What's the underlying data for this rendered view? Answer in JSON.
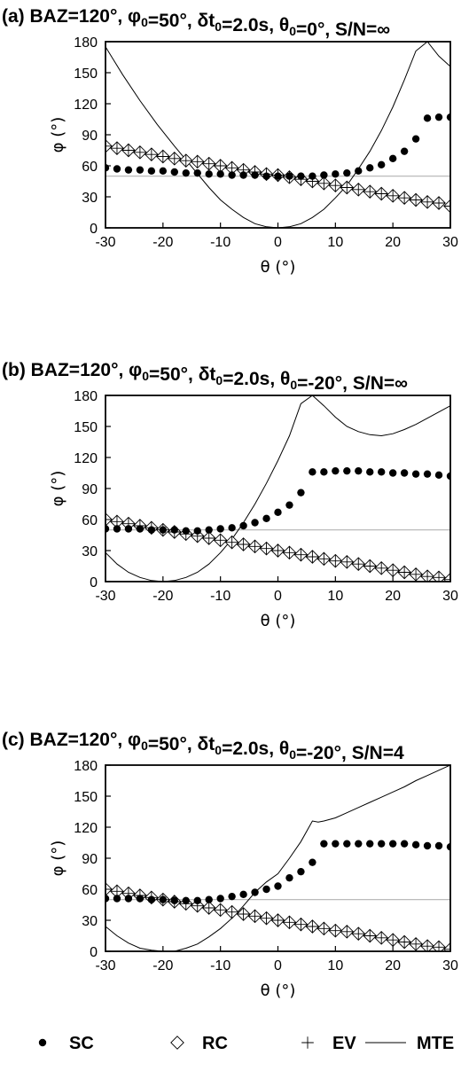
{
  "legend": [
    {
      "key": "SC",
      "label": "SC",
      "marker": "dot"
    },
    {
      "key": "RC",
      "label": "RC",
      "marker": "diamond"
    },
    {
      "key": "EV",
      "label": "EV",
      "marker": "plus"
    },
    {
      "key": "MTE",
      "label": "MTE",
      "marker": "line"
    }
  ],
  "chart_data": [
    {
      "type": "scatter",
      "title": "(a) BAZ=120°, φ0=50°, δt0=2.0s, θ0=0°, S/N=∞",
      "title_parts": [
        {
          "t": "(a) BAZ=120°, φ"
        },
        {
          "t": "0",
          "sub": true
        },
        {
          "t": "=50°, δt"
        },
        {
          "t": "0",
          "sub": true
        },
        {
          "t": "=2.0s, θ"
        },
        {
          "t": "0",
          "sub": true
        },
        {
          "t": "=0°, S/N=∞"
        }
      ],
      "xlabel": "θ (°)",
      "ylabel": "φ (°)",
      "xlim": [
        -30,
        30
      ],
      "ylim": [
        0,
        180
      ],
      "xticks": [
        -30,
        -20,
        -10,
        0,
        10,
        20,
        30
      ],
      "yticks": [
        0,
        30,
        60,
        90,
        120,
        150,
        180
      ],
      "reference_line": 50,
      "x": [
        -30,
        -28,
        -26,
        -24,
        -22,
        -20,
        -18,
        -16,
        -14,
        -12,
        -10,
        -8,
        -6,
        -4,
        -2,
        0,
        2,
        4,
        6,
        8,
        10,
        12,
        14,
        16,
        18,
        20,
        22,
        24,
        26,
        28,
        30
      ],
      "series": [
        {
          "name": "SC",
          "values": [
            58,
            57,
            56,
            56,
            55,
            55,
            54,
            53,
            53,
            52,
            52,
            51,
            51,
            51,
            50,
            50,
            50,
            50,
            50,
            51,
            52,
            53,
            55,
            58,
            61,
            67,
            74,
            86,
            106,
            107,
            107
          ]
        },
        {
          "name": "RC",
          "values": [
            79,
            77,
            75,
            73,
            71,
            69,
            67,
            65,
            64,
            62,
            60,
            58,
            56,
            54,
            52,
            51,
            49,
            47,
            45,
            43,
            41,
            39,
            37,
            35,
            33,
            31,
            29,
            27,
            25,
            24,
            21
          ]
        },
        {
          "name": "EV",
          "values": [
            79,
            77,
            75,
            73,
            71,
            69,
            67,
            65,
            64,
            62,
            60,
            58,
            56,
            54,
            52,
            51,
            49,
            47,
            45,
            43,
            41,
            39,
            37,
            35,
            33,
            31,
            29,
            27,
            25,
            24,
            21
          ]
        },
        {
          "name": "MTE",
          "x": [
            -30,
            -27,
            -24,
            -21,
            -18,
            -15,
            -12,
            -10,
            -8,
            -6,
            -4,
            -2,
            0,
            2,
            4,
            6,
            8,
            10,
            12,
            14,
            16,
            18,
            20,
            22,
            24,
            26,
            28,
            30
          ],
          "values": [
            175,
            148,
            123,
            100,
            79,
            59,
            39,
            27,
            18,
            10,
            4,
            1,
            0,
            1,
            4,
            10,
            18,
            29,
            41,
            57,
            74,
            94,
            117,
            143,
            171,
            180,
            166,
            156
          ]
        }
      ]
    },
    {
      "type": "scatter",
      "title": "(b) BAZ=120°, φ0=50°, δt0=2.0s, θ0=-20°, S/N=∞",
      "title_parts": [
        {
          "t": "(b) BAZ=120°, φ"
        },
        {
          "t": "0",
          "sub": true
        },
        {
          "t": "=50°, δt"
        },
        {
          "t": "0",
          "sub": true
        },
        {
          "t": "=2.0s, θ"
        },
        {
          "t": "0",
          "sub": true
        },
        {
          "t": "=-20°, S/N=∞"
        }
      ],
      "xlabel": "θ (°)",
      "ylabel": "φ (°)",
      "xlim": [
        -30,
        30
      ],
      "ylim": [
        0,
        180
      ],
      "xticks": [
        -30,
        -20,
        -10,
        0,
        10,
        20,
        30
      ],
      "yticks": [
        0,
        30,
        60,
        90,
        120,
        150,
        180
      ],
      "reference_line": 50,
      "x": [
        -30,
        -28,
        -26,
        -24,
        -22,
        -20,
        -18,
        -16,
        -14,
        -12,
        -10,
        -8,
        -6,
        -4,
        -2,
        0,
        2,
        4,
        6,
        8,
        10,
        12,
        14,
        16,
        18,
        20,
        22,
        24,
        26,
        28,
        30
      ],
      "series": [
        {
          "name": "SC",
          "values": [
            51,
            51,
            51,
            51,
            50,
            50,
            50,
            49,
            49,
            50,
            51,
            52,
            54,
            57,
            61,
            67,
            74,
            86,
            106,
            106,
            107,
            107,
            107,
            106,
            106,
            105,
            105,
            104,
            104,
            103,
            102
          ]
        },
        {
          "name": "RC",
          "values": [
            60,
            58,
            56,
            54,
            52,
            50,
            48,
            46,
            44,
            42,
            40,
            38,
            36,
            34,
            32,
            30,
            28,
            26,
            24,
            22,
            20,
            19,
            17,
            15,
            13,
            11,
            9,
            7,
            5,
            4,
            2
          ]
        },
        {
          "name": "EV",
          "values": [
            60,
            58,
            56,
            54,
            52,
            50,
            48,
            46,
            44,
            42,
            40,
            38,
            36,
            34,
            32,
            30,
            28,
            26,
            24,
            22,
            20,
            19,
            17,
            15,
            13,
            11,
            9,
            7,
            5,
            4,
            2
          ]
        },
        {
          "name": "MTE",
          "x": [
            -30,
            -28,
            -26,
            -24,
            -22,
            -20,
            -18,
            -16,
            -14,
            -12,
            -10,
            -8,
            -6,
            -4,
            -2,
            0,
            2,
            4,
            6,
            8,
            10,
            12,
            14,
            16,
            18,
            20,
            22,
            24,
            26,
            28,
            30
          ],
          "values": [
            28,
            17,
            9,
            4,
            1,
            0,
            1,
            4,
            9,
            17,
            28,
            41,
            57,
            75,
            95,
            117,
            141,
            172,
            180,
            170,
            159,
            150,
            145,
            142,
            141,
            143,
            147,
            152,
            158,
            164,
            170
          ]
        }
      ]
    },
    {
      "type": "scatter",
      "title": "(c) BAZ=120°, φ0=50°, δt0=2.0s, θ0=-20°, S/N=4",
      "title_parts": [
        {
          "t": "(c) BAZ=120°, φ"
        },
        {
          "t": "0",
          "sub": true
        },
        {
          "t": "=50°, δt"
        },
        {
          "t": "0",
          "sub": true
        },
        {
          "t": "=2.0s, θ"
        },
        {
          "t": "0",
          "sub": true
        },
        {
          "t": "=-20°, S/N=4"
        }
      ],
      "xlabel": "θ (°)",
      "ylabel": "φ (°)",
      "xlim": [
        -30,
        30
      ],
      "ylim": [
        0,
        180
      ],
      "xticks": [
        -30,
        -20,
        -10,
        0,
        10,
        20,
        30
      ],
      "yticks": [
        0,
        30,
        60,
        90,
        120,
        150,
        180
      ],
      "reference_line": 50,
      "x": [
        -30,
        -28,
        -26,
        -24,
        -22,
        -20,
        -18,
        -16,
        -14,
        -12,
        -10,
        -8,
        -6,
        -4,
        -2,
        0,
        2,
        4,
        6,
        8,
        10,
        12,
        14,
        16,
        18,
        20,
        22,
        24,
        26,
        28,
        30
      ],
      "series": [
        {
          "name": "SC",
          "values": [
            51,
            51,
            51,
            51,
            50,
            50,
            49,
            49,
            49,
            50,
            51,
            53,
            55,
            57,
            60,
            63,
            71,
            77,
            86,
            104,
            104,
            104,
            104,
            104,
            104,
            104,
            104,
            103,
            102,
            102,
            101
          ]
        },
        {
          "name": "RC",
          "values": [
            60,
            58,
            56,
            54,
            52,
            50,
            48,
            46,
            44,
            42,
            40,
            38,
            36,
            34,
            32,
            30,
            28,
            26,
            24,
            22,
            20,
            19,
            17,
            15,
            13,
            11,
            9,
            7,
            5,
            4,
            2
          ]
        },
        {
          "name": "EV",
          "values": [
            60,
            58,
            56,
            54,
            52,
            50,
            48,
            46,
            44,
            42,
            40,
            38,
            36,
            34,
            32,
            30,
            28,
            26,
            24,
            22,
            20,
            19,
            17,
            15,
            13,
            11,
            9,
            7,
            5,
            4,
            2
          ]
        },
        {
          "name": "MTE",
          "x": [
            -30,
            -28,
            -26,
            -24,
            -22,
            -20,
            -18,
            -16,
            -14,
            -12,
            -10,
            -8,
            -6,
            -4,
            -2,
            0,
            2,
            4,
            6,
            7,
            8,
            10,
            12,
            14,
            16,
            18,
            20,
            22,
            24,
            26,
            28,
            30
          ],
          "values": [
            24,
            15,
            8,
            3,
            1,
            0,
            0,
            3,
            7,
            14,
            22,
            32,
            44,
            57,
            67,
            75,
            90,
            106,
            126,
            125,
            126,
            129,
            134,
            139,
            144,
            149,
            154,
            159,
            165,
            170,
            175,
            180
          ]
        }
      ]
    }
  ]
}
